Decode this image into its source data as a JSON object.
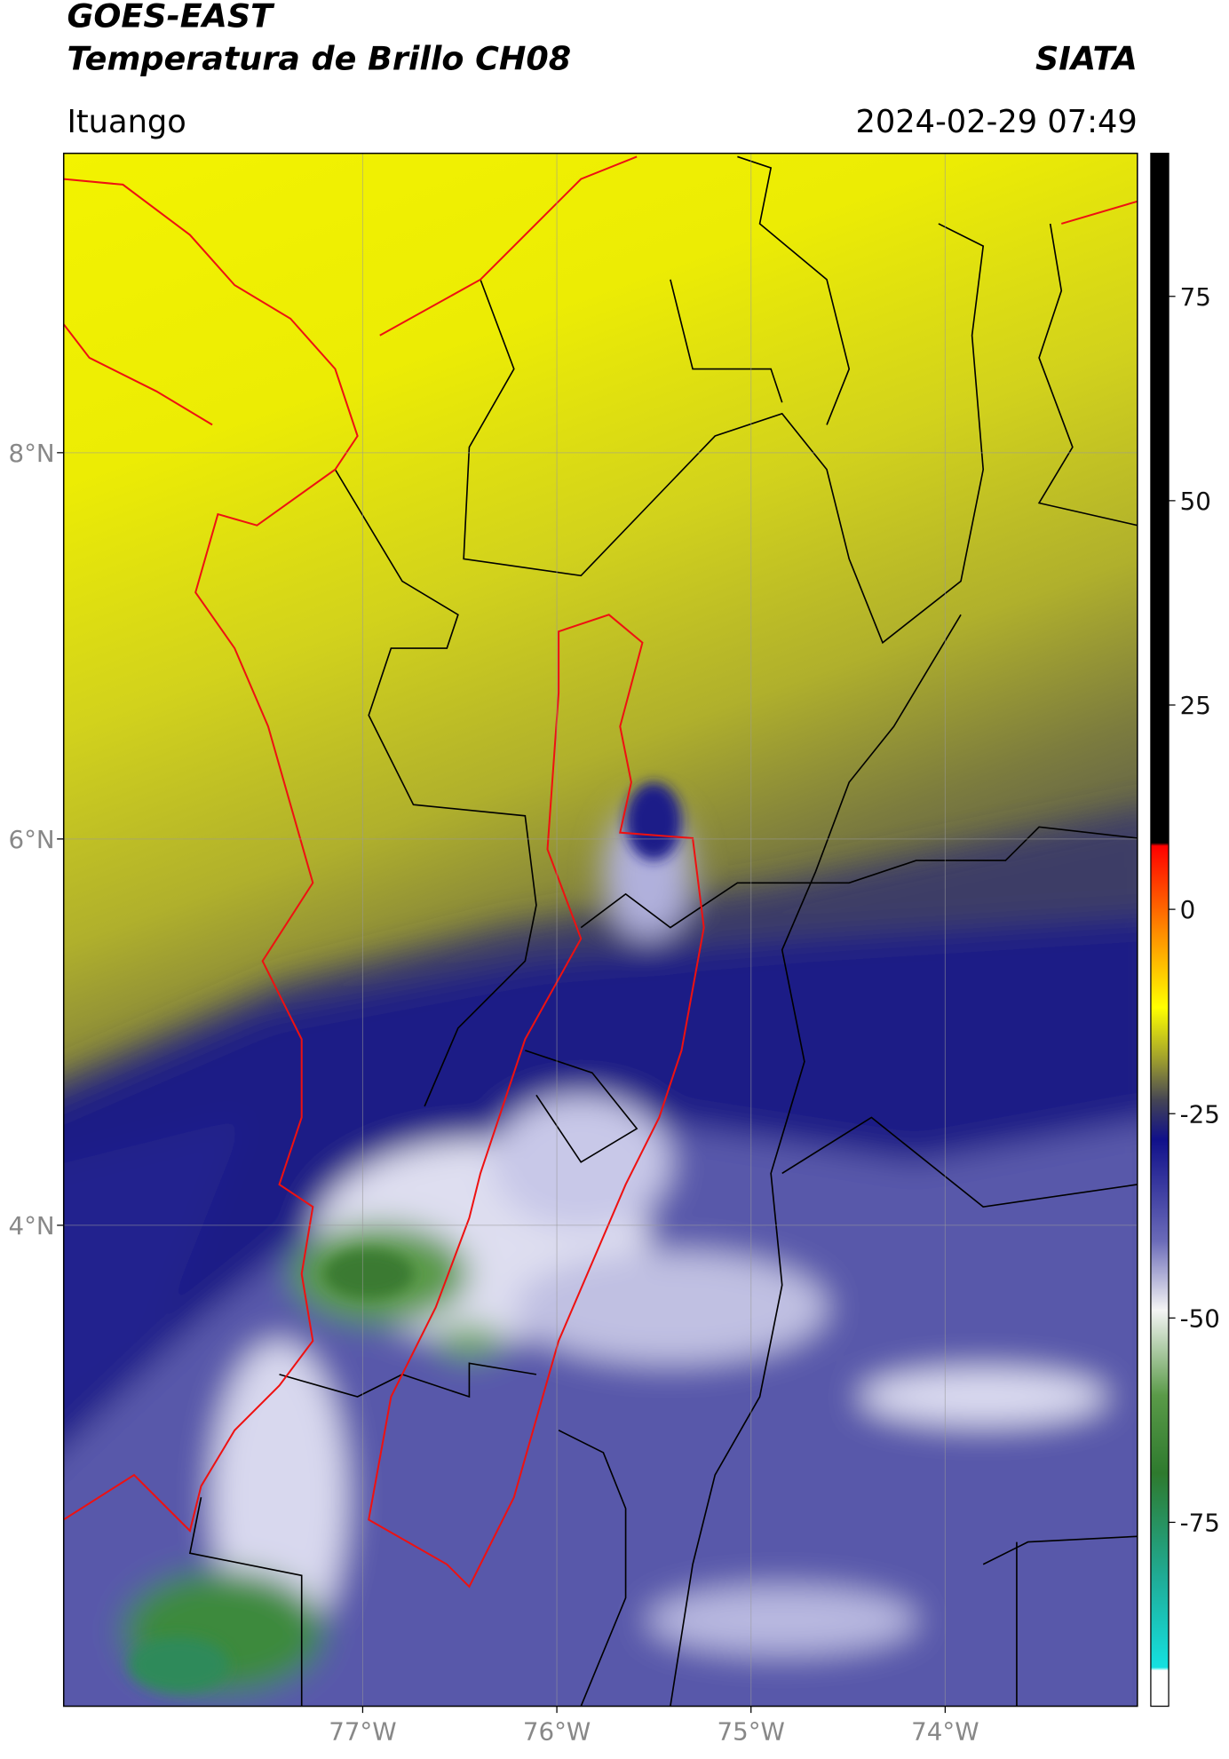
{
  "header": {
    "title": "GOES-EAST",
    "subtitle": "Temperatura de Brillo CH08",
    "brand": "SIATA",
    "region": "Ituango",
    "datetime": "2024-02-29 07:49"
  },
  "map": {
    "xlim": [
      -78.54,
      -73.01
    ],
    "ylim": [
      1.51,
      9.55
    ],
    "xticks": [
      {
        "value": -77,
        "label": "77°W"
      },
      {
        "value": -76,
        "label": "76°W"
      },
      {
        "value": -75,
        "label": "75°W"
      },
      {
        "value": -74,
        "label": "74°W"
      }
    ],
    "yticks": [
      {
        "value": 8,
        "label": "8°N"
      },
      {
        "value": 6,
        "label": "6°N"
      },
      {
        "value": 4,
        "label": "4°N"
      }
    ]
  },
  "colorbar": {
    "lim": [
      -97.5,
      92.5
    ],
    "ticks": [
      75,
      50,
      25,
      0,
      -25,
      -50,
      -75
    ]
  }
}
